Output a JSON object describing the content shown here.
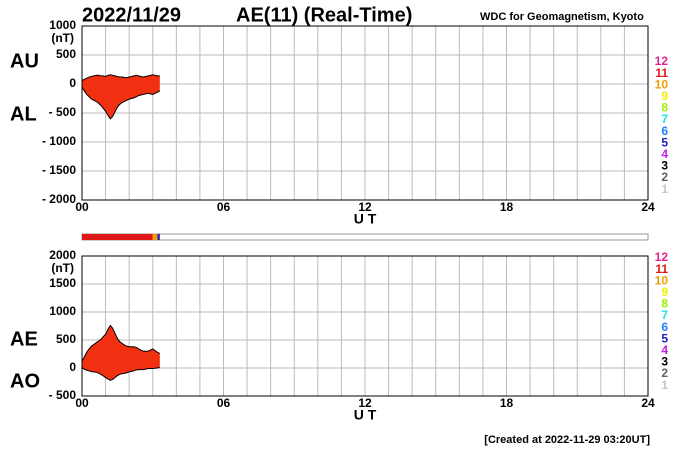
{
  "header": {
    "date": "2022/11/29",
    "title": "AE(11) (Real-Time)",
    "source": "WDC for Geomagnetism, Kyoto"
  },
  "footer": "[Created at 2022-11-29 03:20UT]",
  "station_legend": {
    "labels": [
      12,
      11,
      10,
      9,
      8,
      7,
      6,
      5,
      4,
      3,
      2,
      1
    ],
    "colors": [
      "#e8208c",
      "#e01818",
      "#f0a000",
      "#f0f000",
      "#a0f000",
      "#20e0e0",
      "#2080ff",
      "#2020c0",
      "#c020e0",
      "#000000",
      "#606060",
      "#c8c8c8"
    ]
  },
  "station_bar": {
    "xlim": [
      0,
      24
    ],
    "segments": [
      {
        "start": 0,
        "end": 3.0,
        "color": "#e01818"
      },
      {
        "start": 3.0,
        "end": 3.2,
        "color": "#f0a000"
      },
      {
        "start": 3.2,
        "end": 3.3,
        "color": "#2020c0"
      }
    ]
  },
  "chart_data": [
    {
      "type": "area",
      "y_label": "(nT)",
      "x_label": "U T",
      "xlim": [
        0,
        24
      ],
      "xticks": [
        {
          "value": 0,
          "label": "00"
        },
        {
          "value": 6,
          "label": "06"
        },
        12,
        18,
        24
      ],
      "xgrid": [
        1,
        2,
        3,
        4,
        5,
        7,
        8,
        9,
        10,
        11,
        13,
        14,
        15,
        16,
        17,
        19,
        20,
        21,
        22,
        23
      ],
      "ylim": [
        -2000,
        1000
      ],
      "yticks": [
        {
          "value": -2000,
          "label": "- 2000"
        },
        {
          "value": -1500,
          "label": "- 1500"
        },
        {
          "value": -1000,
          "label": "- 1000"
        },
        {
          "value": -500,
          "label": "- 500"
        },
        0,
        500,
        1000
      ],
      "grid": true,
      "x": [
        0,
        0.1,
        0.2,
        0.3,
        0.4,
        0.5,
        0.6,
        0.7,
        0.8,
        0.9,
        1.0,
        1.1,
        1.2,
        1.3,
        1.4,
        1.5,
        1.6,
        1.7,
        1.8,
        1.9,
        2.0,
        2.1,
        2.2,
        2.3,
        2.4,
        2.5,
        2.6,
        2.7,
        2.8,
        2.9,
        3.0,
        3.1,
        3.2,
        3.3
      ],
      "series": [
        {
          "name": "AU",
          "color": "#f03010",
          "values": [
            60,
            80,
            100,
            120,
            130,
            140,
            150,
            150,
            140,
            140,
            130,
            150,
            160,
            150,
            140,
            130,
            120,
            120,
            110,
            110,
            120,
            130,
            140,
            150,
            140,
            130,
            120,
            130,
            140,
            150,
            160,
            150,
            140,
            140
          ]
        },
        {
          "name": "AL",
          "color": "#f03010",
          "values": [
            -60,
            -120,
            -180,
            -220,
            -260,
            -280,
            -300,
            -330,
            -370,
            -420,
            -470,
            -540,
            -600,
            -560,
            -480,
            -400,
            -350,
            -320,
            -300,
            -280,
            -260,
            -250,
            -240,
            -220,
            -200,
            -190,
            -180,
            -170,
            -160,
            -170,
            -180,
            -160,
            -140,
            -120
          ]
        }
      ]
    },
    {
      "type": "area",
      "y_label": "(nT)",
      "x_label": "U T",
      "xlim": [
        0,
        24
      ],
      "xticks": [
        {
          "value": 0,
          "label": "00"
        },
        {
          "value": 6,
          "label": "06"
        },
        12,
        18,
        24
      ],
      "xgrid": [
        1,
        2,
        3,
        4,
        5,
        7,
        8,
        9,
        10,
        11,
        13,
        14,
        15,
        16,
        17,
        19,
        20,
        21,
        22,
        23
      ],
      "ylim": [
        -500,
        2000
      ],
      "yticks": [
        {
          "value": -500,
          "label": "- 500"
        },
        0,
        500,
        1000,
        1500,
        2000
      ],
      "grid": true,
      "x": [
        0,
        0.1,
        0.2,
        0.3,
        0.4,
        0.5,
        0.6,
        0.7,
        0.8,
        0.9,
        1.0,
        1.1,
        1.2,
        1.3,
        1.4,
        1.5,
        1.6,
        1.7,
        1.8,
        1.9,
        2.0,
        2.1,
        2.2,
        2.3,
        2.4,
        2.5,
        2.6,
        2.7,
        2.8,
        2.9,
        3.0,
        3.1,
        3.2,
        3.3
      ],
      "series": [
        {
          "name": "AE",
          "color": "#f03010",
          "values": [
            120,
            200,
            280,
            340,
            390,
            420,
            450,
            480,
            510,
            560,
            600,
            690,
            760,
            710,
            620,
            530,
            470,
            440,
            410,
            390,
            380,
            380,
            380,
            370,
            340,
            320,
            300,
            300,
            300,
            320,
            340,
            310,
            280,
            260
          ]
        },
        {
          "name": "AO",
          "color": "#f03010",
          "values": [
            0,
            -20,
            -40,
            -50,
            -65,
            -70,
            -75,
            -90,
            -115,
            -140,
            -170,
            -195,
            -220,
            -205,
            -170,
            -135,
            -115,
            -100,
            -95,
            -85,
            -70,
            -60,
            -50,
            -35,
            -30,
            -30,
            -30,
            -20,
            -10,
            -10,
            -10,
            -5,
            0,
            10
          ]
        }
      ]
    }
  ]
}
